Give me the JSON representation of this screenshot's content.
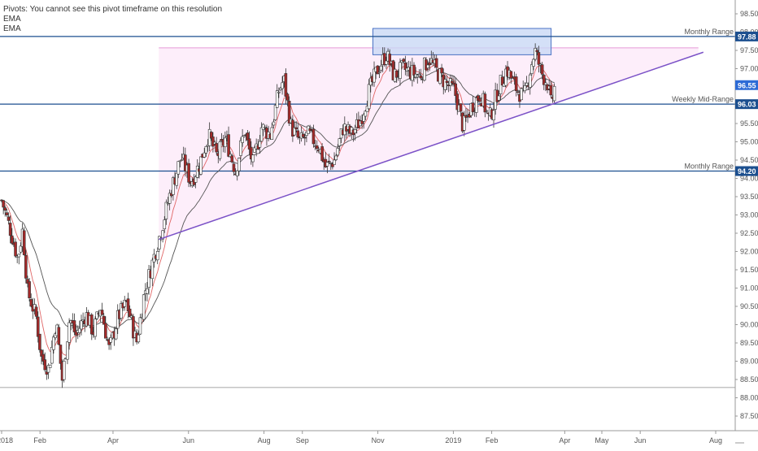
{
  "legend": {
    "pivots_note": "Pivots: You cannot see this pivot timeframe on this resolution",
    "ema1": "EMA",
    "ema2": "EMA"
  },
  "colors": {
    "up_candle": "#ffffff",
    "down_candle": "#a52a2a",
    "candle_wick": "#333333",
    "ema_fast": "#e06666",
    "ema_slow": "#555555",
    "level_line": "#1c4f8f",
    "trendline": "#7b52c7",
    "triangle_fill": "#fdeefa",
    "triangle_top": "#e59ad8",
    "box_fill": "#c9d8f5",
    "box_stroke": "#4a72c4",
    "price_tag": "#1c4f8f",
    "current_tag": "#2d6bd6"
  },
  "chart_data": {
    "type": "candlestick",
    "x_axis": {
      "tick_labels": [
        "2018",
        "Feb",
        "Apr",
        "Jun",
        "Aug",
        "Sep",
        "Nov",
        "2019",
        "Feb",
        "Apr",
        "May",
        "Jun",
        "Aug"
      ],
      "range": [
        "2018-01-01",
        "2019-08-10"
      ]
    },
    "y_axis": {
      "position": "right",
      "range": [
        87.2,
        98.7
      ],
      "tick_labels": [
        "87.50",
        "88.00",
        "88.50",
        "89.00",
        "89.50",
        "90.00",
        "90.50",
        "91.00",
        "91.50",
        "92.00",
        "92.50",
        "93.00",
        "93.50",
        "94.00",
        "94.50",
        "95.00",
        "95.50",
        "96.00",
        "96.50",
        "97.00",
        "97.50",
        "98.00",
        "98.50"
      ]
    },
    "levels": [
      {
        "label": "Monthly Range",
        "value": 97.88,
        "tag": "97.88"
      },
      {
        "label": "Weekly Mid-Range",
        "value": 96.03,
        "tag": "96.03"
      },
      {
        "label": "Monthly Range",
        "value": 94.2,
        "tag": "94.20"
      }
    ],
    "bottom_line": 88.28,
    "current_price": {
      "value": 96.55,
      "tag": "96.55"
    },
    "trendline": {
      "start": [
        "2018-05-08",
        92.33
      ],
      "end": [
        "2019-07-22",
        97.45
      ]
    },
    "triangle": {
      "top": 97.57,
      "start": "2018-05-08",
      "end": "2019-07-18"
    },
    "resistance_box": {
      "start": "2018-10-28",
      "end": "2019-03-21",
      "low": 97.38,
      "high": 98.1
    },
    "price_path": [
      [
        "2018-01-01",
        93.4
      ],
      [
        "2018-01-08",
        92.6
      ],
      [
        "2018-01-14",
        91.8
      ],
      [
        "2018-01-18",
        92.6
      ],
      [
        "2018-01-22",
        90.9
      ],
      [
        "2018-01-29",
        90.2
      ],
      [
        "2018-02-02",
        89.1
      ],
      [
        "2018-02-08",
        88.8
      ],
      [
        "2018-02-14",
        90.1
      ],
      [
        "2018-02-19",
        88.5
      ],
      [
        "2018-02-25",
        90.2
      ],
      [
        "2018-03-02",
        89.7
      ],
      [
        "2018-03-10",
        90.3
      ],
      [
        "2018-03-16",
        89.8
      ],
      [
        "2018-03-22",
        90.5
      ],
      [
        "2018-03-29",
        89.3
      ],
      [
        "2018-04-05",
        90.2
      ],
      [
        "2018-04-12",
        90.6
      ],
      [
        "2018-04-20",
        89.5
      ],
      [
        "2018-04-26",
        90.8
      ],
      [
        "2018-05-02",
        91.6
      ],
      [
        "2018-05-10",
        92.6
      ],
      [
        "2018-05-18",
        93.7
      ],
      [
        "2018-05-26",
        94.6
      ],
      [
        "2018-06-03",
        93.9
      ],
      [
        "2018-06-10",
        94.4
      ],
      [
        "2018-06-17",
        95.2
      ],
      [
        "2018-06-24",
        94.6
      ],
      [
        "2018-07-01",
        95.1
      ],
      [
        "2018-07-09",
        94.2
      ],
      [
        "2018-07-16",
        95.3
      ],
      [
        "2018-07-23",
        94.4
      ],
      [
        "2018-07-30",
        95.4
      ],
      [
        "2018-08-06",
        95.2
      ],
      [
        "2018-08-13",
        96.4
      ],
      [
        "2018-08-17",
        96.7
      ],
      [
        "2018-08-23",
        95.4
      ],
      [
        "2018-08-30",
        95.0
      ],
      [
        "2018-09-06",
        95.2
      ],
      [
        "2018-09-14",
        94.9
      ],
      [
        "2018-09-20",
        94.3
      ],
      [
        "2018-09-27",
        94.5
      ],
      [
        "2018-10-04",
        95.4
      ],
      [
        "2018-10-11",
        95.2
      ],
      [
        "2018-10-18",
        95.6
      ],
      [
        "2018-10-25",
        96.4
      ],
      [
        "2018-11-01",
        97.0
      ],
      [
        "2018-11-08",
        97.4
      ],
      [
        "2018-11-14",
        96.8
      ],
      [
        "2018-11-21",
        97.0
      ],
      [
        "2018-11-28",
        96.9
      ],
      [
        "2018-12-05",
        96.8
      ],
      [
        "2018-12-12",
        97.3
      ],
      [
        "2018-12-19",
        96.9
      ],
      [
        "2018-12-26",
        96.6
      ],
      [
        "2019-01-02",
        96.4
      ],
      [
        "2019-01-09",
        95.4
      ],
      [
        "2019-01-16",
        96.0
      ],
      [
        "2019-01-23",
        96.3
      ],
      [
        "2019-01-30",
        95.6
      ],
      [
        "2019-02-06",
        96.4
      ],
      [
        "2019-02-13",
        97.0
      ],
      [
        "2019-02-20",
        96.5
      ],
      [
        "2019-02-27",
        96.2
      ],
      [
        "2019-03-05",
        97.1
      ],
      [
        "2019-03-08",
        97.5
      ],
      [
        "2019-03-13",
        96.9
      ],
      [
        "2019-03-18",
        96.6
      ],
      [
        "2019-03-21",
        96.0
      ],
      [
        "2019-03-24",
        96.55
      ]
    ]
  }
}
